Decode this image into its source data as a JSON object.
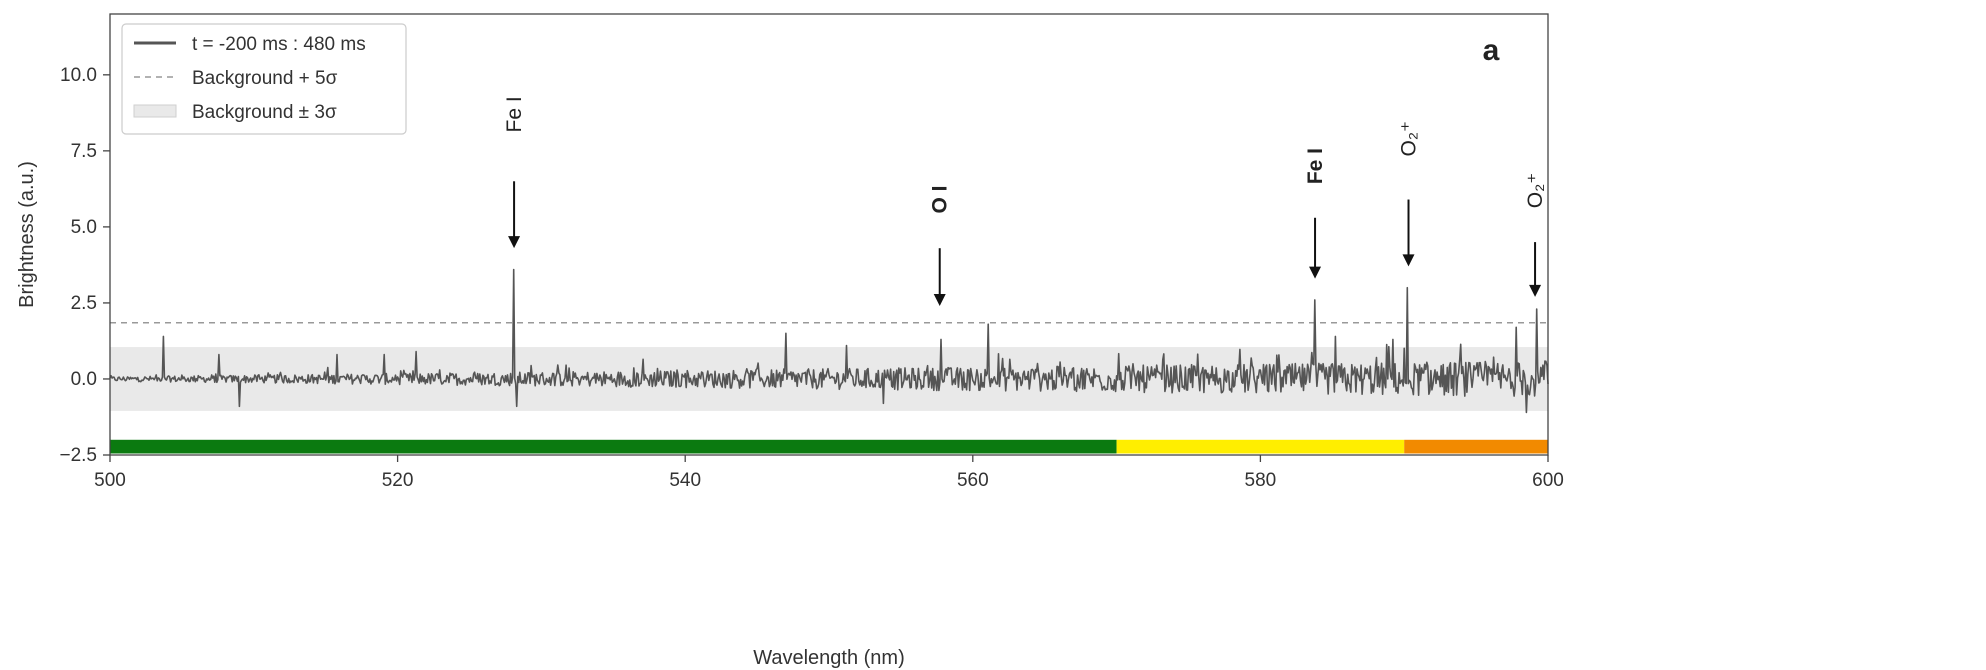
{
  "chart_data": {
    "type": "line",
    "panel_label": "a",
    "xlabel": "Wavelength (nm)",
    "ylabel": "Brightness (a.u.)",
    "xlim": [
      500,
      600
    ],
    "ylim": [
      -2.5,
      12
    ],
    "xticks": [
      500,
      520,
      540,
      560,
      580,
      600
    ],
    "yticks": [
      -2.5,
      0.0,
      2.5,
      5.0,
      7.5,
      10.0
    ],
    "xtick_labels": [
      "500",
      "520",
      "540",
      "560",
      "580",
      "600"
    ],
    "ytick_labels": [
      "−2.5",
      "0.0",
      "2.5",
      "5.0",
      "7.5",
      "10.0"
    ],
    "grid": false,
    "legend_position": "top-left",
    "legend": [
      {
        "label": "t = -200 ms : 480 ms",
        "style": "solid-line"
      },
      {
        "label": "Background + 5σ",
        "style": "dashed-line"
      },
      {
        "label": "Background ± 3σ",
        "style": "shaded-band"
      }
    ],
    "background_plus_5sigma": 1.85,
    "background_band_3sigma": [
      -1.05,
      1.05
    ],
    "series": [
      {
        "name": "t = -200 ms : 480 ms",
        "color": "#555555",
        "noise_start": [
          500,
          0.08
        ],
        "noise_end": [
          600,
          0.6
        ],
        "peaks": [
          {
            "x": 503.7,
            "y": 1.4
          },
          {
            "x": 507.6,
            "y": 0.8
          },
          {
            "x": 509.0,
            "y": -0.9
          },
          {
            "x": 515.8,
            "y": 0.8
          },
          {
            "x": 519.1,
            "y": 0.8
          },
          {
            "x": 521.3,
            "y": 0.9
          },
          {
            "x": 528.1,
            "y": 3.6
          },
          {
            "x": 528.3,
            "y": -0.9
          },
          {
            "x": 547.0,
            "y": 1.5
          },
          {
            "x": 551.2,
            "y": 1.1
          },
          {
            "x": 553.8,
            "y": -0.8
          },
          {
            "x": 557.8,
            "y": 1.3
          },
          {
            "x": 561.1,
            "y": 1.8
          },
          {
            "x": 583.8,
            "y": 2.6
          },
          {
            "x": 585.2,
            "y": 1.4
          },
          {
            "x": 589.2,
            "y": 1.3
          },
          {
            "x": 590.2,
            "y": 3.0
          },
          {
            "x": 597.8,
            "y": 1.7
          },
          {
            "x": 598.5,
            "y": -1.1
          },
          {
            "x": 599.2,
            "y": 2.3
          }
        ]
      }
    ],
    "annotations": [
      {
        "label": "Fe I",
        "x": 528.1,
        "arrow_top": 6.5,
        "arrow_bottom": 4.3,
        "label_y": 8.7,
        "bold": false
      },
      {
        "label": "O I",
        "x": 557.7,
        "arrow_top": 4.3,
        "arrow_bottom": 2.4,
        "label_y": 5.9,
        "bold": true
      },
      {
        "label": "Fe I",
        "x": 583.8,
        "arrow_top": 5.3,
        "arrow_bottom": 3.3,
        "label_y": 7.0,
        "bold": true
      },
      {
        "label": "O₂⁺",
        "x": 590.3,
        "arrow_top": 5.9,
        "arrow_bottom": 3.7,
        "label_y": 7.9,
        "bold": false
      },
      {
        "label": "O₂⁺",
        "x": 599.1,
        "arrow_top": 4.5,
        "arrow_bottom": 2.7,
        "label_y": 6.2,
        "bold": false
      }
    ],
    "color_bar": [
      {
        "start": 500,
        "end": 570,
        "color": "#0b7a10"
      },
      {
        "start": 570,
        "end": 590,
        "color": "#ffee00"
      },
      {
        "start": 590,
        "end": 600,
        "color": "#f28a00"
      }
    ],
    "color_bar_range": [
      -2.45,
      -2.0
    ]
  }
}
